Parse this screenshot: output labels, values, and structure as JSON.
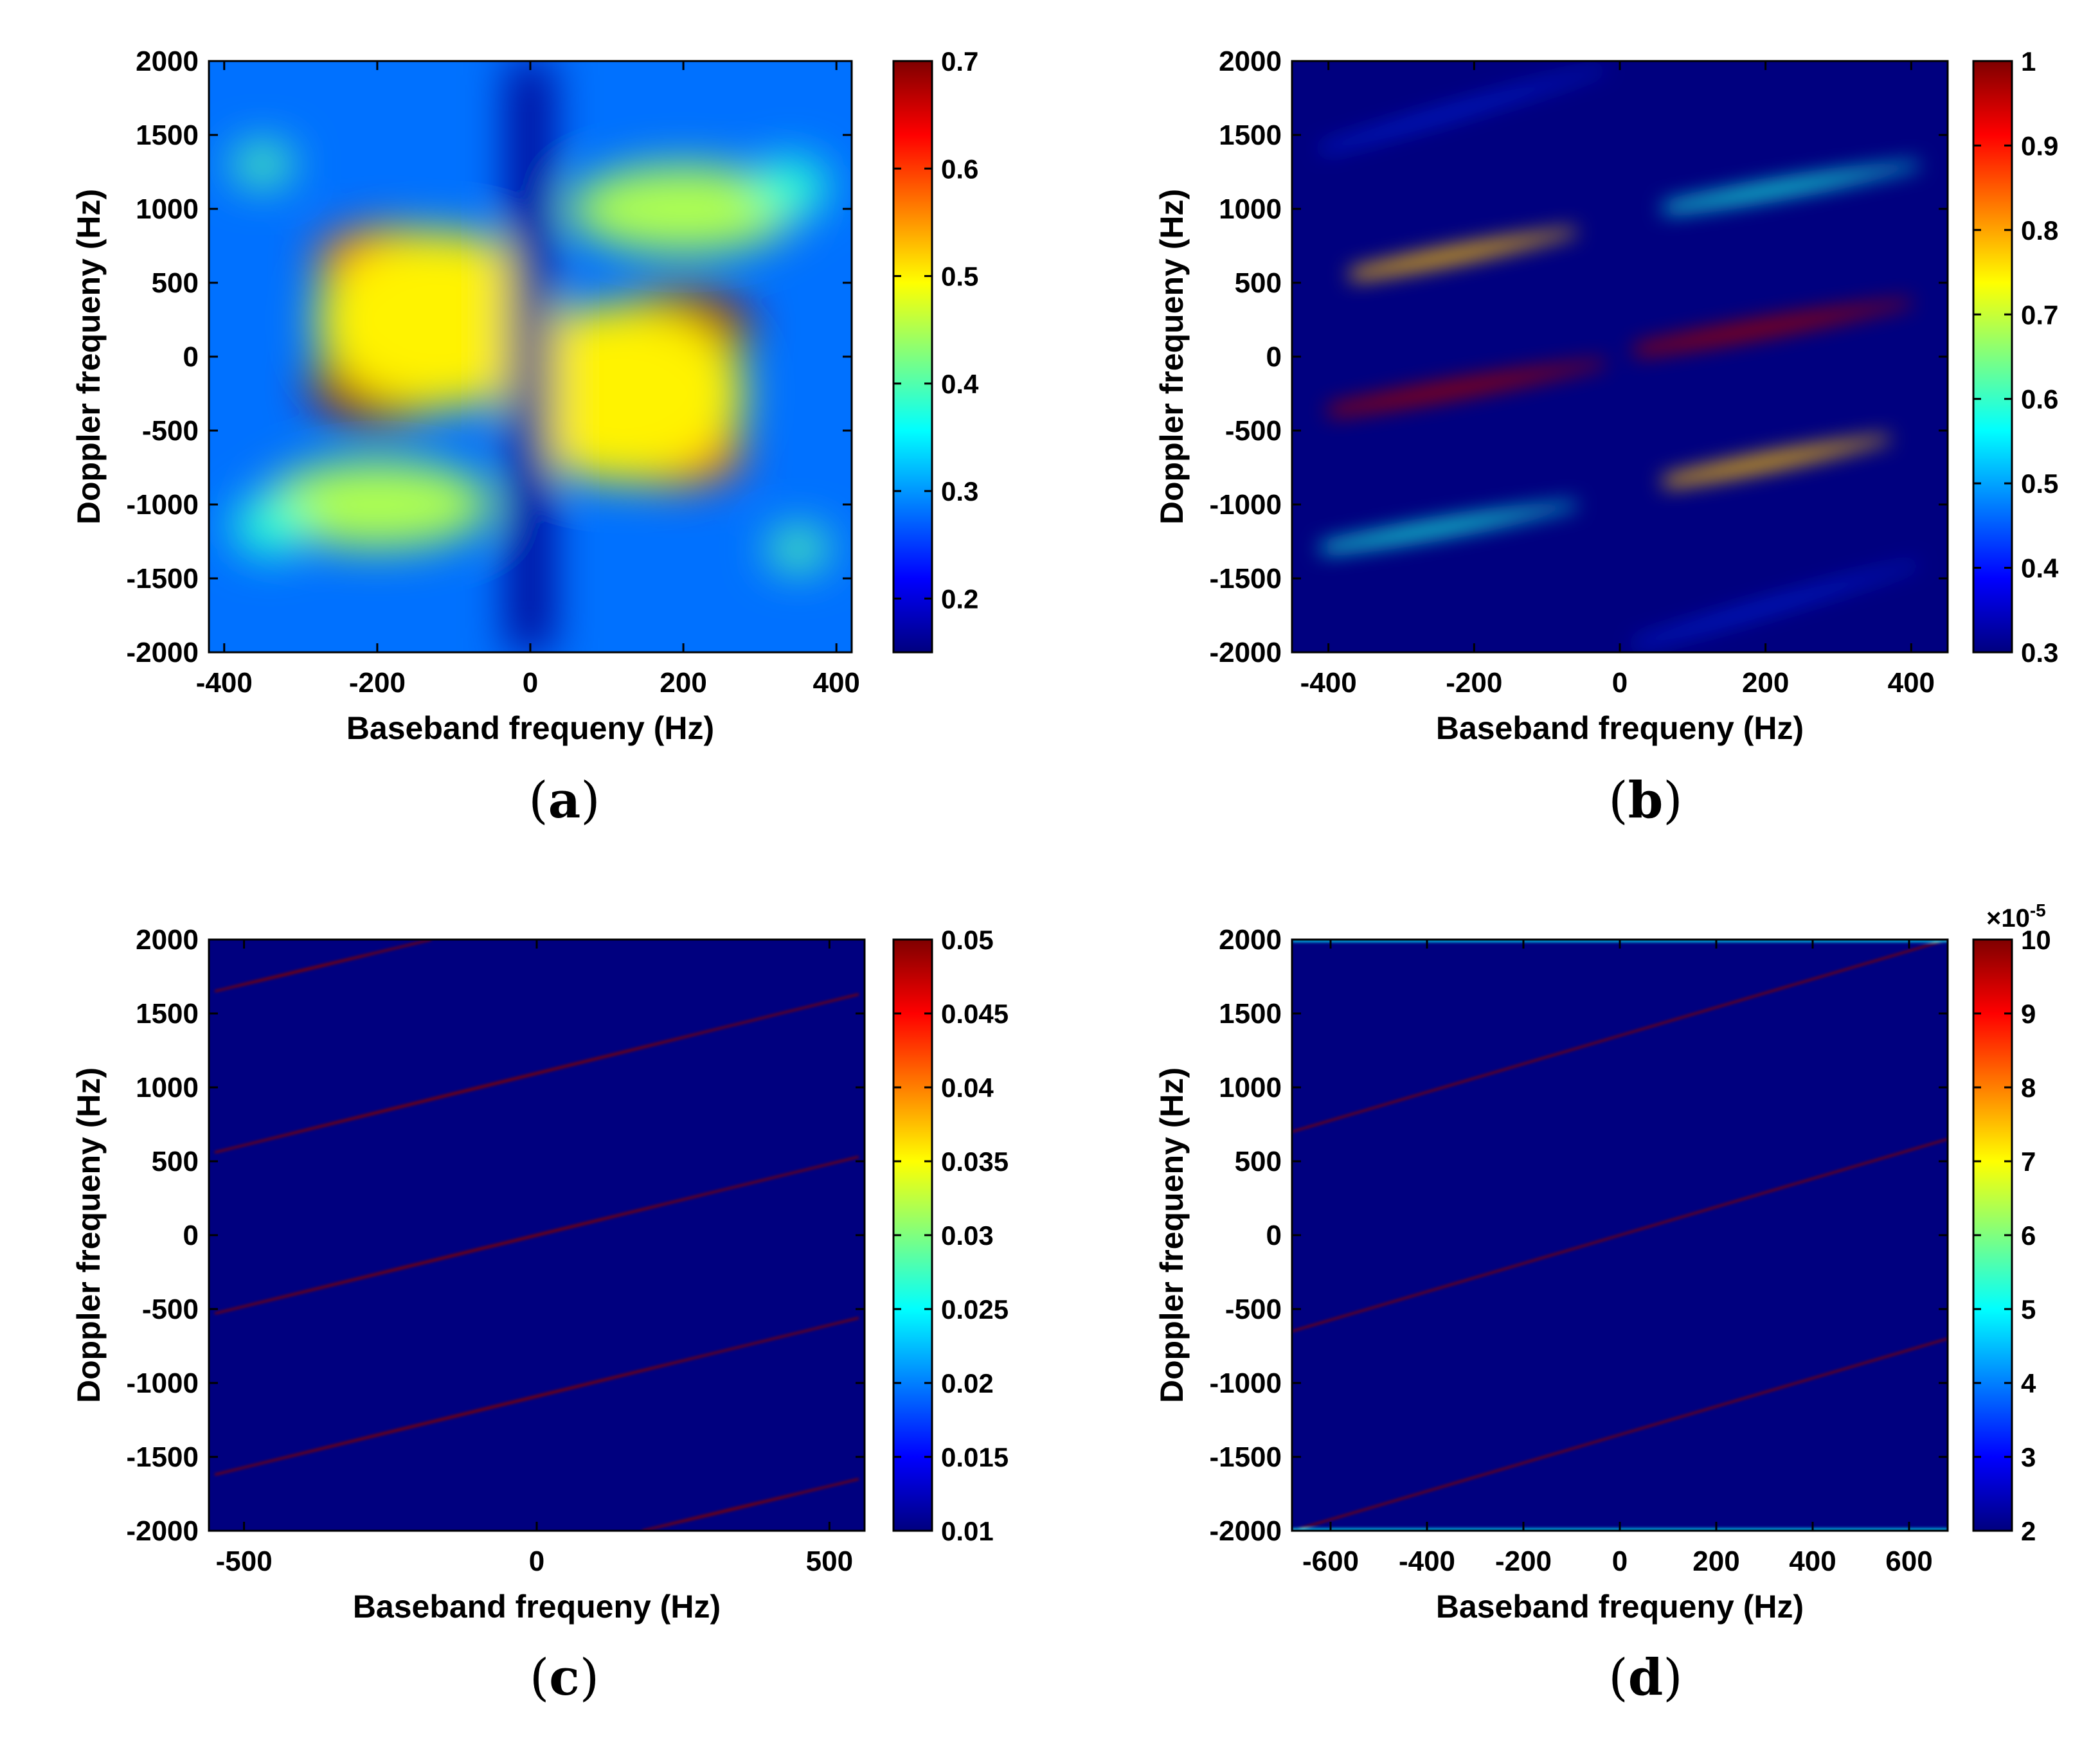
{
  "figure": {
    "colors": {
      "background": "#ffffff",
      "text": "#000000",
      "colormap": [
        "#00007f",
        "#0000ff",
        "#007fff",
        "#00ffff",
        "#7fff7f",
        "#ffff00",
        "#ff7f00",
        "#ff0000",
        "#7f0000"
      ]
    }
  },
  "chart_data": [
    {
      "id": "a",
      "panel_label": "(a)",
      "type": "heatmap",
      "title": "",
      "xlabel": "Baseband frequeny (Hz)",
      "ylabel": "Doppler frequeny (Hz)",
      "xlim": [
        -420,
        420
      ],
      "ylim": [
        -2000,
        2000
      ],
      "xticks": [
        -400,
        -200,
        0,
        200,
        400
      ],
      "yticks": [
        -2000,
        -1500,
        -1000,
        -500,
        0,
        500,
        1000,
        1500,
        2000
      ],
      "colorbar": {
        "range": [
          0.15,
          0.7
        ],
        "ticks": [
          0.2,
          0.3,
          0.4,
          0.5,
          0.6,
          0.7
        ],
        "tick_labels": [
          "0.2",
          "0.3",
          "0.4",
          "0.5",
          "0.6",
          "0.7"
        ],
        "exponent_label": ""
      },
      "background_value": 0.28,
      "features": [
        {
          "kind": "blob",
          "x": -200,
          "y": -200,
          "sx": 90,
          "sy": 260,
          "value": 0.68
        },
        {
          "kind": "blob",
          "x": 200,
          "y": 200,
          "sx": 90,
          "sy": 260,
          "value": 0.68
        },
        {
          "kind": "blob",
          "x": -190,
          "y": 650,
          "sx": 90,
          "sy": 230,
          "value": 0.6
        },
        {
          "kind": "blob",
          "x": 190,
          "y": -650,
          "sx": 90,
          "sy": 230,
          "value": 0.6
        },
        {
          "kind": "blob",
          "x": -120,
          "y": 250,
          "sx": 160,
          "sy": 600,
          "value": 0.5
        },
        {
          "kind": "blob",
          "x": 120,
          "y": -250,
          "sx": 160,
          "sy": 600,
          "value": 0.5
        },
        {
          "kind": "blob",
          "x": 200,
          "y": 1000,
          "sx": 150,
          "sy": 300,
          "value": 0.45
        },
        {
          "kind": "blob",
          "x": -200,
          "y": -1000,
          "sx": 150,
          "sy": 300,
          "value": 0.45
        },
        {
          "kind": "blob",
          "x": -350,
          "y": 1300,
          "sx": 40,
          "sy": 140,
          "value": 0.4
        },
        {
          "kind": "blob",
          "x": 350,
          "y": -1300,
          "sx": 40,
          "sy": 140,
          "value": 0.4
        },
        {
          "kind": "blob",
          "x": 340,
          "y": 1150,
          "sx": 50,
          "sy": 200,
          "value": 0.38
        },
        {
          "kind": "blob",
          "x": -340,
          "y": -1150,
          "sx": 50,
          "sy": 200,
          "value": 0.38
        },
        {
          "kind": "band",
          "x": 0,
          "width": 28,
          "value": 0.16
        }
      ]
    },
    {
      "id": "b",
      "panel_label": "(b)",
      "type": "heatmap",
      "title": "",
      "xlabel": "Baseband frequeny (Hz)",
      "ylabel": "Doppler frequeny (Hz)",
      "xlim": [
        -450,
        450
      ],
      "ylim": [
        -2000,
        2000
      ],
      "xticks": [
        -400,
        -200,
        0,
        200,
        400
      ],
      "yticks": [
        -2000,
        -1500,
        -1000,
        -500,
        0,
        500,
        1000,
        1500,
        2000
      ],
      "colorbar": {
        "range": [
          0.3,
          1
        ],
        "ticks": [
          0.3,
          0.4,
          0.5,
          0.6,
          0.7,
          0.8,
          0.9,
          1
        ],
        "tick_labels": [
          "0.3",
          "0.4",
          "0.5",
          "0.6",
          "0.7",
          "0.8",
          "0.9",
          "1"
        ],
        "exponent_label": ""
      },
      "background_value": 0.3,
      "features": [
        {
          "kind": "streak",
          "x0": -400,
          "y0": -370,
          "x1": -20,
          "y1": -40,
          "width": 110,
          "value": 0.98
        },
        {
          "kind": "streak",
          "x0": 20,
          "y0": 40,
          "x1": 400,
          "y1": 370,
          "width": 110,
          "value": 0.98
        },
        {
          "kind": "streak",
          "x0": -370,
          "y0": 550,
          "x1": -60,
          "y1": 850,
          "width": 100,
          "value": 0.78
        },
        {
          "kind": "streak",
          "x0": 60,
          "y0": -850,
          "x1": 370,
          "y1": -550,
          "width": 100,
          "value": 0.78
        },
        {
          "kind": "streak",
          "x0": 60,
          "y0": 1000,
          "x1": 410,
          "y1": 1300,
          "width": 90,
          "value": 0.58
        },
        {
          "kind": "streak",
          "x0": -410,
          "y0": -1300,
          "x1": -60,
          "y1": -1000,
          "width": 90,
          "value": 0.58
        },
        {
          "kind": "streak",
          "x0": -410,
          "y0": 1400,
          "x1": -20,
          "y1": 1950,
          "width": 50,
          "value": 0.42
        },
        {
          "kind": "streak",
          "x0": 20,
          "y0": -1950,
          "x1": 410,
          "y1": -1400,
          "width": 50,
          "value": 0.42
        }
      ]
    },
    {
      "id": "c",
      "panel_label": "(c)",
      "type": "heatmap",
      "title": "",
      "xlabel": "Baseband frequeny (Hz)",
      "ylabel": "Doppler frequeny (Hz)",
      "xlim": [
        -560,
        560
      ],
      "ylim": [
        -2000,
        2000
      ],
      "xticks": [
        -500,
        0,
        500
      ],
      "yticks": [
        -2000,
        -1500,
        -1000,
        -500,
        0,
        500,
        1000,
        1500,
        2000
      ],
      "colorbar": {
        "range": [
          0.01,
          0.05
        ],
        "ticks": [
          0.01,
          0.015,
          0.02,
          0.025,
          0.03,
          0.035,
          0.04,
          0.045,
          0.05
        ],
        "tick_labels": [
          "0.01",
          "0.015",
          "0.02",
          "0.025",
          "0.03",
          "0.035",
          "0.04",
          "0.045",
          "0.05"
        ],
        "exponent_label": ""
      },
      "background_value": 0.01,
      "features": [
        {
          "kind": "streak",
          "x0": -550,
          "y0": -530,
          "x1": 550,
          "y1": 530,
          "width": 18,
          "value": 0.05
        },
        {
          "kind": "streak",
          "x0": -550,
          "y0": 560,
          "x1": 550,
          "y1": 1630,
          "width": 18,
          "value": 0.05
        },
        {
          "kind": "streak",
          "x0": -550,
          "y0": -1620,
          "x1": 550,
          "y1": -560,
          "width": 18,
          "value": 0.05
        },
        {
          "kind": "streak",
          "x0": -550,
          "y0": 1650,
          "x1": -180,
          "y1": 2000,
          "width": 18,
          "value": 0.05
        },
        {
          "kind": "streak",
          "x0": 180,
          "y0": -2000,
          "x1": 550,
          "y1": -1650,
          "width": 18,
          "value": 0.05
        }
      ]
    },
    {
      "id": "d",
      "panel_label": "(d)",
      "type": "heatmap",
      "title": "",
      "xlabel": "Baseband frequeny (Hz)",
      "ylabel": "Doppler frequeny (Hz)",
      "xlim": [
        -680,
        680
      ],
      "ylim": [
        -2000,
        2000
      ],
      "xticks": [
        -600,
        -400,
        -200,
        0,
        200,
        400,
        600
      ],
      "yticks": [
        -2000,
        -1500,
        -1000,
        -500,
        0,
        500,
        1000,
        1500,
        2000
      ],
      "colorbar": {
        "range": [
          2,
          10
        ],
        "ticks": [
          2,
          3,
          4,
          5,
          6,
          7,
          8,
          9,
          10
        ],
        "tick_labels": [
          "2",
          "3",
          "4",
          "5",
          "6",
          "7",
          "8",
          "9",
          "10"
        ],
        "exponent_label": "×10",
        "exponent_power": "-5"
      },
      "background_value": 2,
      "features": [
        {
          "kind": "streak",
          "x0": -680,
          "y0": -650,
          "x1": 680,
          "y1": 650,
          "width": 10,
          "value": 10
        },
        {
          "kind": "streak",
          "x0": -680,
          "y0": 700,
          "x1": 680,
          "y1": 2000,
          "width": 10,
          "value": 10
        },
        {
          "kind": "streak",
          "x0": -680,
          "y0": -2000,
          "x1": 680,
          "y1": -700,
          "width": 10,
          "value": 10
        },
        {
          "kind": "streak",
          "x0": -680,
          "y0": 1990,
          "x1": 680,
          "y1": 1990,
          "width": 12,
          "value": 5
        },
        {
          "kind": "streak",
          "x0": -680,
          "y0": -1990,
          "x1": 680,
          "y1": -1990,
          "width": 12,
          "value": 5
        }
      ]
    }
  ]
}
